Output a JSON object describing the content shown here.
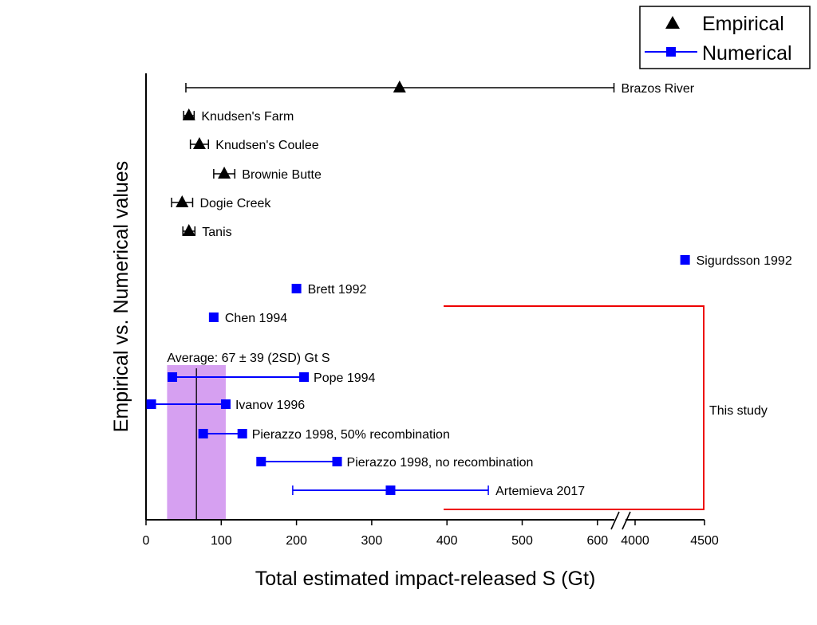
{
  "chart_data": {
    "type": "scatter",
    "xlabel": "Total estimated impact-released S (Gt)",
    "ylabel": "Empirical vs. Numerical values",
    "x_ticks": [
      "0",
      "100",
      "200",
      "300",
      "400",
      "500",
      "600",
      "4000",
      "4500"
    ],
    "xlim": [
      0,
      650
    ],
    "x_axis_break": {
      "after": 650,
      "resume": 4000
    },
    "legend": {
      "placement": "top-right",
      "entries": [
        {
          "label": "Empirical",
          "marker": "triangle",
          "color": "#000000"
        },
        {
          "label": "Numerical",
          "marker": "square",
          "color": "#0000ff"
        }
      ]
    },
    "series": [
      {
        "name": "Numerical",
        "color": "#0000ff",
        "points": [
          {
            "label": "Sigurdsson 1992",
            "value": 4360
          },
          {
            "label": "Brett 1992",
            "value": 200
          },
          {
            "label": "Chen 1994",
            "value": 90
          },
          {
            "label": "Pope 1994",
            "low": 35,
            "high": 210
          },
          {
            "label": "Ivanov 1996",
            "low": 7,
            "high": 106
          },
          {
            "label": "Pierazzo 1998, 50% recombination",
            "low": 76,
            "high": 128
          },
          {
            "label": "Pierazzo 1998, no recombination",
            "low": 153,
            "high": 254
          },
          {
            "label": "Artemieva 2017",
            "value": 325,
            "low": 195,
            "high": 455
          }
        ]
      },
      {
        "name": "Empirical",
        "color": "#000000",
        "points": [
          {
            "label": "Brazos River",
            "value": 337,
            "low": 53,
            "high": 622
          },
          {
            "label": "Knudsen's Farm",
            "value": 57,
            "low": 50,
            "high": 64
          },
          {
            "label": "Knudsen's Coulee",
            "value": 71,
            "low": 59,
            "high": 83
          },
          {
            "label": "Brownie Butte",
            "value": 104,
            "low": 90,
            "high": 118
          },
          {
            "label": "Dogie Creek",
            "value": 48,
            "low": 34,
            "high": 62
          },
          {
            "label": "Tanis",
            "value": 57,
            "low": 49,
            "high": 65
          }
        ]
      }
    ],
    "average_band": {
      "label": "Average: 67 ± 39 (2SD) Gt S",
      "mean": 67,
      "low": 28,
      "high": 106,
      "color": "#cc88ee",
      "label_color": "#9933dd"
    },
    "bracket": {
      "label": "This study",
      "color": "#ee0000"
    },
    "grid": false
  }
}
